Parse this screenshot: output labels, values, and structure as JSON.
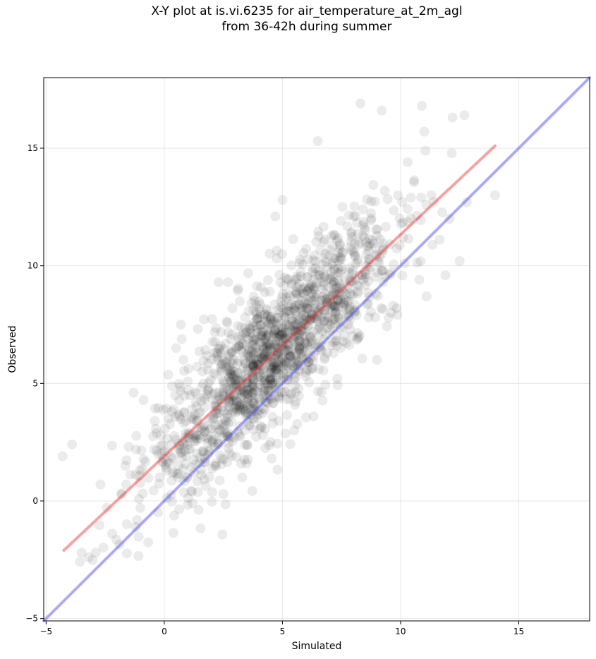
{
  "chart_data": {
    "type": "scatter",
    "title_line1": "X-Y plot at is.vi.6235 for air_temperature_at_2m_agl",
    "title_line2": "from 36-42h during summer",
    "xlabel": "Simulated",
    "ylabel": "Observed",
    "xlim": [
      -5.1,
      18
    ],
    "ylim": [
      -5.1,
      18
    ],
    "xticks": [
      -5,
      0,
      5,
      10,
      15
    ],
    "yticks": [
      -5,
      0,
      5,
      10,
      15
    ],
    "grid": true,
    "legend": "none",
    "point_color": "#000000",
    "point_opacity": 0.08,
    "series": [
      {
        "type": "regression-line",
        "color": "#ee3333",
        "x": [
          -4.25,
          14.0
        ],
        "y": [
          -2.1,
          15.1
        ]
      },
      {
        "type": "identity-line",
        "color": "#4444ee",
        "x": [
          -5.1,
          18
        ],
        "y": [
          -5.1,
          18
        ]
      }
    ],
    "scatter_anchor_points": [
      {
        "x": -4.3,
        "y": 1.9
      },
      {
        "x": -3.9,
        "y": 2.4
      },
      {
        "x": -3.5,
        "y": -2.2
      },
      {
        "x": -3.2,
        "y": -2.4
      },
      {
        "x": -2.9,
        "y": -2.2
      },
      {
        "x": -2.7,
        "y": 0.7
      },
      {
        "x": -1.5,
        "y": 2.3
      },
      {
        "x": -1.3,
        "y": 4.6
      },
      {
        "x": -0.4,
        "y": 3.4
      },
      {
        "x": 0.5,
        "y": 6.5
      },
      {
        "x": 0.7,
        "y": 7.5
      },
      {
        "x": 1.2,
        "y": -0.1
      },
      {
        "x": 2.3,
        "y": 9.3
      },
      {
        "x": 2.7,
        "y": 9.3
      },
      {
        "x": 4.7,
        "y": 12.1
      },
      {
        "x": 5.0,
        "y": 12.8
      },
      {
        "x": 6.5,
        "y": 15.3
      },
      {
        "x": 8.3,
        "y": 16.9
      },
      {
        "x": 9.2,
        "y": 16.6
      },
      {
        "x": 9.0,
        "y": 6.0
      },
      {
        "x": 9.6,
        "y": 8.0
      },
      {
        "x": 10.9,
        "y": 16.8
      },
      {
        "x": 11.0,
        "y": 15.7
      },
      {
        "x": 12.2,
        "y": 16.3
      },
      {
        "x": 12.7,
        "y": 16.4
      },
      {
        "x": 11.1,
        "y": 8.7
      },
      {
        "x": 11.9,
        "y": 9.6
      },
      {
        "x": 12.8,
        "y": 12.7
      },
      {
        "x": 14.0,
        "y": 13.0
      },
      {
        "x": 12.5,
        "y": 10.2
      },
      {
        "x": 2.5,
        "y": 0.3
      },
      {
        "x": 3.3,
        "y": 1.0
      },
      {
        "x": 4.5,
        "y": 2.5
      },
      {
        "x": 5.5,
        "y": 3.0
      },
      {
        "x": 6.8,
        "y": 6.1
      }
    ]
  }
}
